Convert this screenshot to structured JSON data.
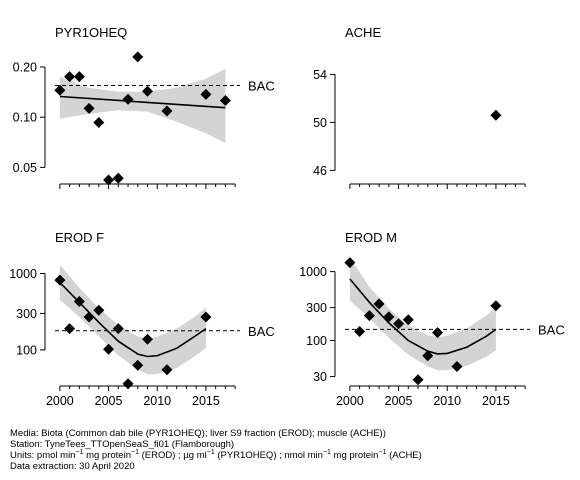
{
  "chart_data": [
    {
      "type": "scatter",
      "title": "PYR1OHEQ",
      "scale": "log",
      "ylim": [
        0.042,
        0.26
      ],
      "yticks": [
        "0.05",
        "0.10",
        "0.20"
      ],
      "ytick_values": [
        0.05,
        0.1,
        0.2
      ],
      "xticks": [
        "2000",
        "2005",
        "2010",
        "2015"
      ],
      "xlim": [
        1999.5,
        2018.5
      ],
      "reference_line": {
        "label": "BAC",
        "value": 0.155
      },
      "points": {
        "x": [
          2000,
          2001,
          2002,
          2003,
          2004,
          2005,
          2006,
          2007,
          2008,
          2009,
          2011,
          2015,
          2017
        ],
        "y": [
          0.145,
          0.175,
          0.175,
          0.113,
          0.093,
          0.042,
          0.043,
          0.128,
          0.23,
          0.143,
          0.109,
          0.137,
          0.126
        ]
      },
      "trend": {
        "x": [
          2000,
          2017
        ],
        "y": [
          0.133,
          0.114
        ]
      },
      "band": {
        "x": [
          2000,
          2003,
          2006,
          2009,
          2012,
          2015,
          2017
        ],
        "upper": [
          0.175,
          0.15,
          0.142,
          0.142,
          0.15,
          0.17,
          0.195
        ],
        "lower": [
          0.098,
          0.105,
          0.11,
          0.108,
          0.094,
          0.08,
          0.07
        ]
      },
      "grid": false
    },
    {
      "type": "scatter",
      "title": "ACHE",
      "scale": "linear",
      "ylim": [
        45.2,
        56.2
      ],
      "yticks": [
        "46",
        "50",
        "54"
      ],
      "ytick_values": [
        46,
        50,
        54
      ],
      "xticks": [
        "2000",
        "2005",
        "2010",
        "2015"
      ],
      "xlim": [
        1999.5,
        2018.5
      ],
      "points": {
        "x": [
          2015
        ],
        "y": [
          50.6
        ]
      },
      "grid": false
    },
    {
      "type": "scatter",
      "title": "EROD F",
      "scale": "log",
      "ylim": [
        38,
        1800
      ],
      "yticks": [
        "100",
        "300",
        "1000"
      ],
      "ytick_values": [
        100,
        300,
        1000
      ],
      "xticks": [
        "2000",
        "2005",
        "2010",
        "2015"
      ],
      "xlim": [
        1999.5,
        2018.5
      ],
      "reference_line": {
        "label": "BAC",
        "value": 178
      },
      "points": {
        "x": [
          2000,
          2001,
          2002,
          2003,
          2004,
          2005,
          2006,
          2007,
          2008,
          2009,
          2011,
          2015
        ],
        "y": [
          820,
          190,
          430,
          270,
          330,
          102,
          190,
          36,
          63,
          138,
          55,
          270
        ]
      },
      "trend": {
        "x": [
          2000,
          2002,
          2004,
          2006,
          2008,
          2009,
          2010,
          2012,
          2014,
          2015
        ],
        "y": [
          760,
          420,
          230,
          130,
          88,
          82,
          84,
          105,
          155,
          190
        ]
      },
      "band": {
        "x": [
          2000,
          2002,
          2004,
          2006,
          2008,
          2009,
          2010,
          2012,
          2014,
          2015
        ],
        "upper": [
          1300,
          650,
          350,
          210,
          150,
          140,
          148,
          190,
          280,
          360
        ],
        "lower": [
          450,
          270,
          150,
          85,
          55,
          48,
          48,
          58,
          85,
          105
        ]
      },
      "grid": false
    },
    {
      "type": "scatter",
      "title": "EROD M",
      "scale": "log",
      "ylim": [
        25,
        1800
      ],
      "yticks": [
        "30",
        "100",
        "300",
        "1000"
      ],
      "ytick_values": [
        30,
        100,
        300,
        1000
      ],
      "xticks": [
        "2000",
        "2005",
        "2010",
        "2015"
      ],
      "xlim": [
        1999.5,
        2018.5
      ],
      "reference_line": {
        "label": "BAC",
        "value": 145
      },
      "points": {
        "x": [
          2000,
          2001,
          2002,
          2003,
          2004,
          2005,
          2006,
          2007,
          2008,
          2009,
          2011,
          2015
        ],
        "y": [
          1350,
          135,
          230,
          340,
          220,
          175,
          200,
          27,
          60,
          130,
          42,
          320
        ]
      },
      "trend": {
        "x": [
          2000,
          2002,
          2004,
          2006,
          2008,
          2009,
          2010,
          2012,
          2014,
          2015
        ],
        "y": [
          780,
          360,
          180,
          100,
          70,
          64,
          65,
          80,
          115,
          145
        ]
      },
      "band": {
        "x": [
          2000,
          2002,
          2004,
          2006,
          2008,
          2009,
          2010,
          2012,
          2014,
          2015
        ],
        "upper": [
          1600,
          600,
          290,
          165,
          120,
          112,
          117,
          150,
          230,
          300
        ],
        "lower": [
          380,
          210,
          110,
          62,
          42,
          37,
          37,
          43,
          58,
          72
        ]
      },
      "grid": false
    }
  ],
  "footer": {
    "media": "Media: Biota (Common dab bile (PYR1OHEQ); liver S9 fraction (EROD); muscle (ACHE))",
    "station": "Station: TyneTees_TTOpenSeaS_fi01 (Flamborough)",
    "units_a": "Units:  pmol min",
    "units_sup1": "−1",
    "units_b": " mg protein",
    "units_sup2": "−1",
    "units_c": " (EROD) ;  µg ml",
    "units_sup3": "−1",
    "units_d": " (PYR1OHEQ) ;  nmol min",
    "units_sup4": "−1",
    "units_e": " mg protein",
    "units_sup5": "−1",
    "units_f": " (ACHE)",
    "extraction": "Data extraction: 30 April 2020"
  }
}
